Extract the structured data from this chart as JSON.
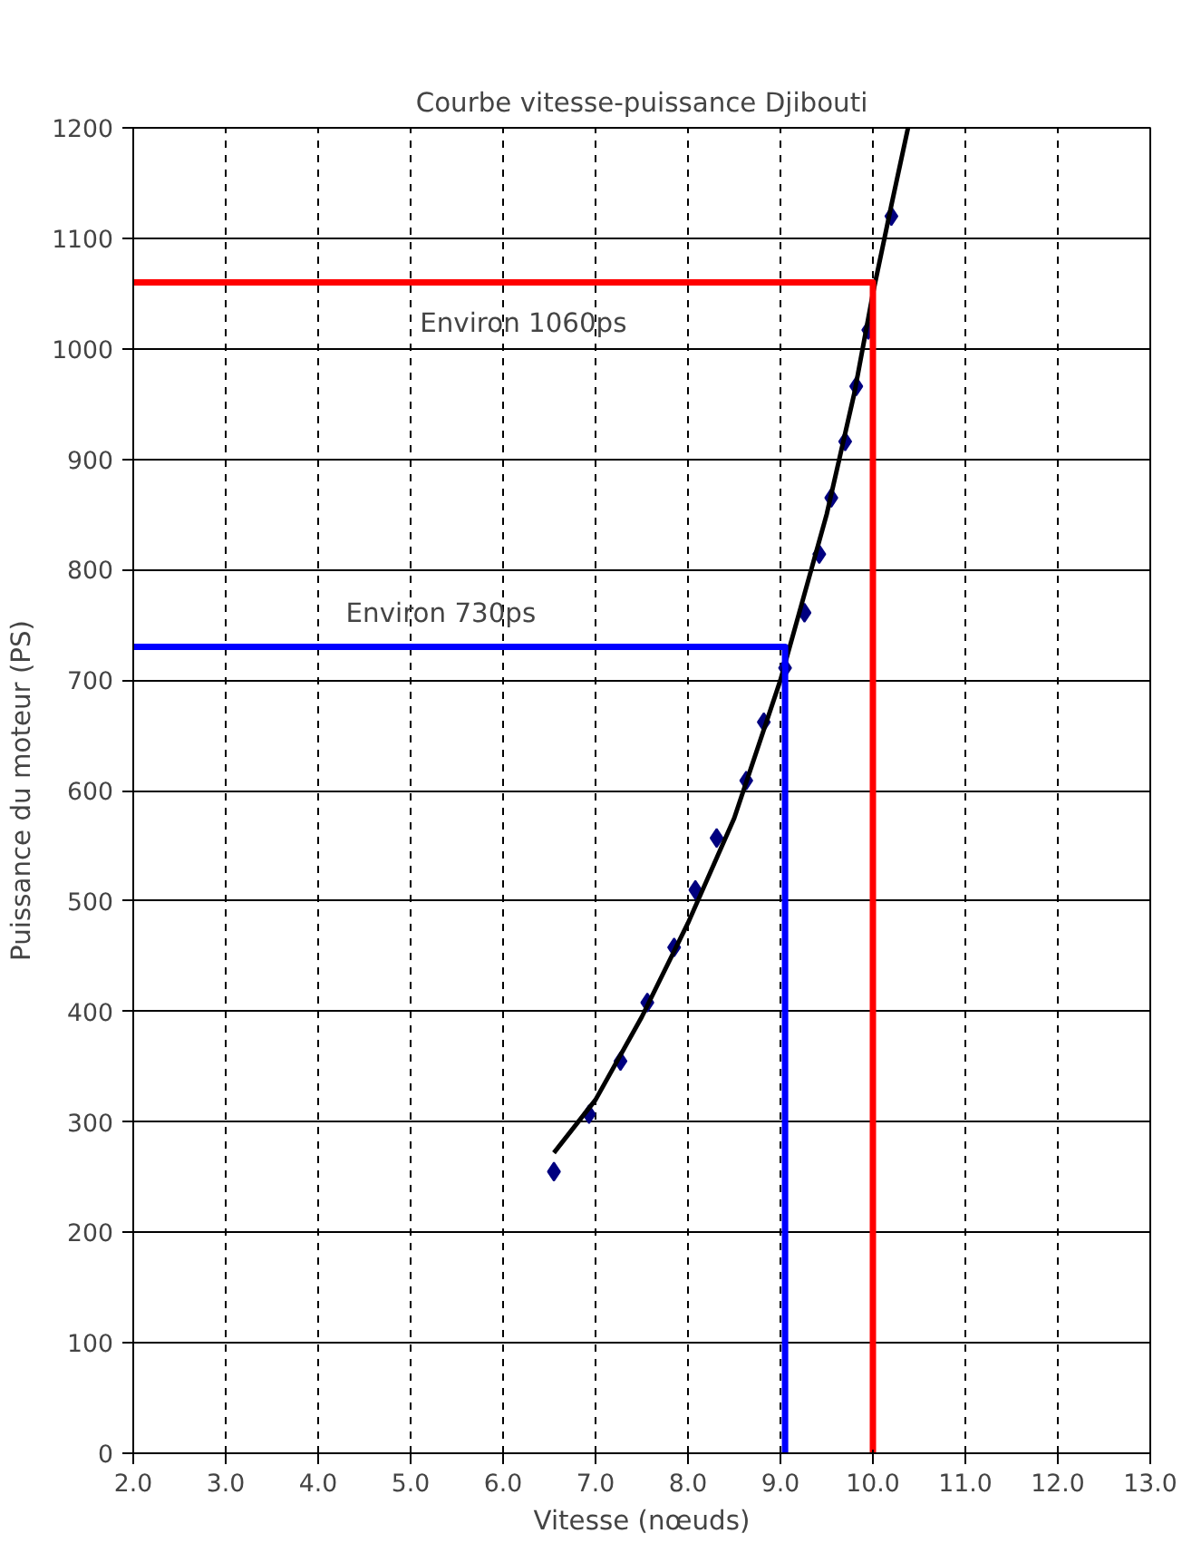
{
  "chart_data": {
    "type": "line",
    "title": "Courbe vitesse-puissance Djibouti",
    "xlabel": "Vitesse (nœuds)",
    "ylabel": "Puissance du moteur (PS)",
    "xlim": [
      2,
      13
    ],
    "ylim": [
      0,
      1200
    ],
    "xticks": [
      {
        "value": 2,
        "label": "2.0"
      },
      {
        "value": 3,
        "label": "3.0"
      },
      {
        "value": 4,
        "label": "4.0"
      },
      {
        "value": 5,
        "label": "5.0"
      },
      {
        "value": 6,
        "label": "6.0"
      },
      {
        "value": 7,
        "label": "7.0"
      },
      {
        "value": 8,
        "label": "8.0"
      },
      {
        "value": 9,
        "label": "9.0"
      },
      {
        "value": 10,
        "label": "10.0"
      },
      {
        "value": 11,
        "label": "11.0"
      },
      {
        "value": 12,
        "label": "12.0"
      },
      {
        "value": 13,
        "label": "13.0"
      }
    ],
    "yticks": [
      0,
      100,
      200,
      300,
      400,
      500,
      600,
      700,
      800,
      900,
      1000,
      1100,
      1200
    ],
    "grid": true,
    "series": [
      {
        "type": "scatter",
        "marker": "diamond",
        "color": "#000080",
        "x": [
          6.55,
          6.93,
          7.27,
          7.56,
          7.85,
          8.08,
          8.31,
          8.63,
          8.82,
          9.05,
          9.26,
          9.42,
          9.55,
          9.7,
          9.82,
          9.95,
          10.2
        ],
        "values": [
          255,
          307,
          355,
          408,
          458,
          510,
          557,
          609,
          662,
          711,
          761,
          814,
          865,
          916,
          966,
          1017,
          1120
        ]
      },
      {
        "color": "#000000",
        "x": [
          6.55,
          7.0,
          7.5,
          8.0,
          8.5,
          9.0,
          9.2,
          9.5,
          9.8,
          10.0,
          10.2,
          10.38
        ],
        "values": [
          272,
          320,
          395,
          480,
          575,
          700,
          760,
          850,
          960,
          1050,
          1130,
          1200
        ]
      },
      {
        "color": "#ff0000",
        "x": [
          2,
          10,
          10
        ],
        "values": [
          1060,
          1060,
          0
        ]
      },
      {
        "color": "#0000ff",
        "x": [
          2,
          9.05,
          9.05
        ],
        "values": [
          730,
          730,
          0
        ]
      }
    ],
    "annotations": [
      {
        "text": "Environ 1060ps",
        "x": 5.1,
        "y": 1060
      },
      {
        "text": "Environ 730ps",
        "x": 4.3,
        "y": 730
      }
    ]
  }
}
